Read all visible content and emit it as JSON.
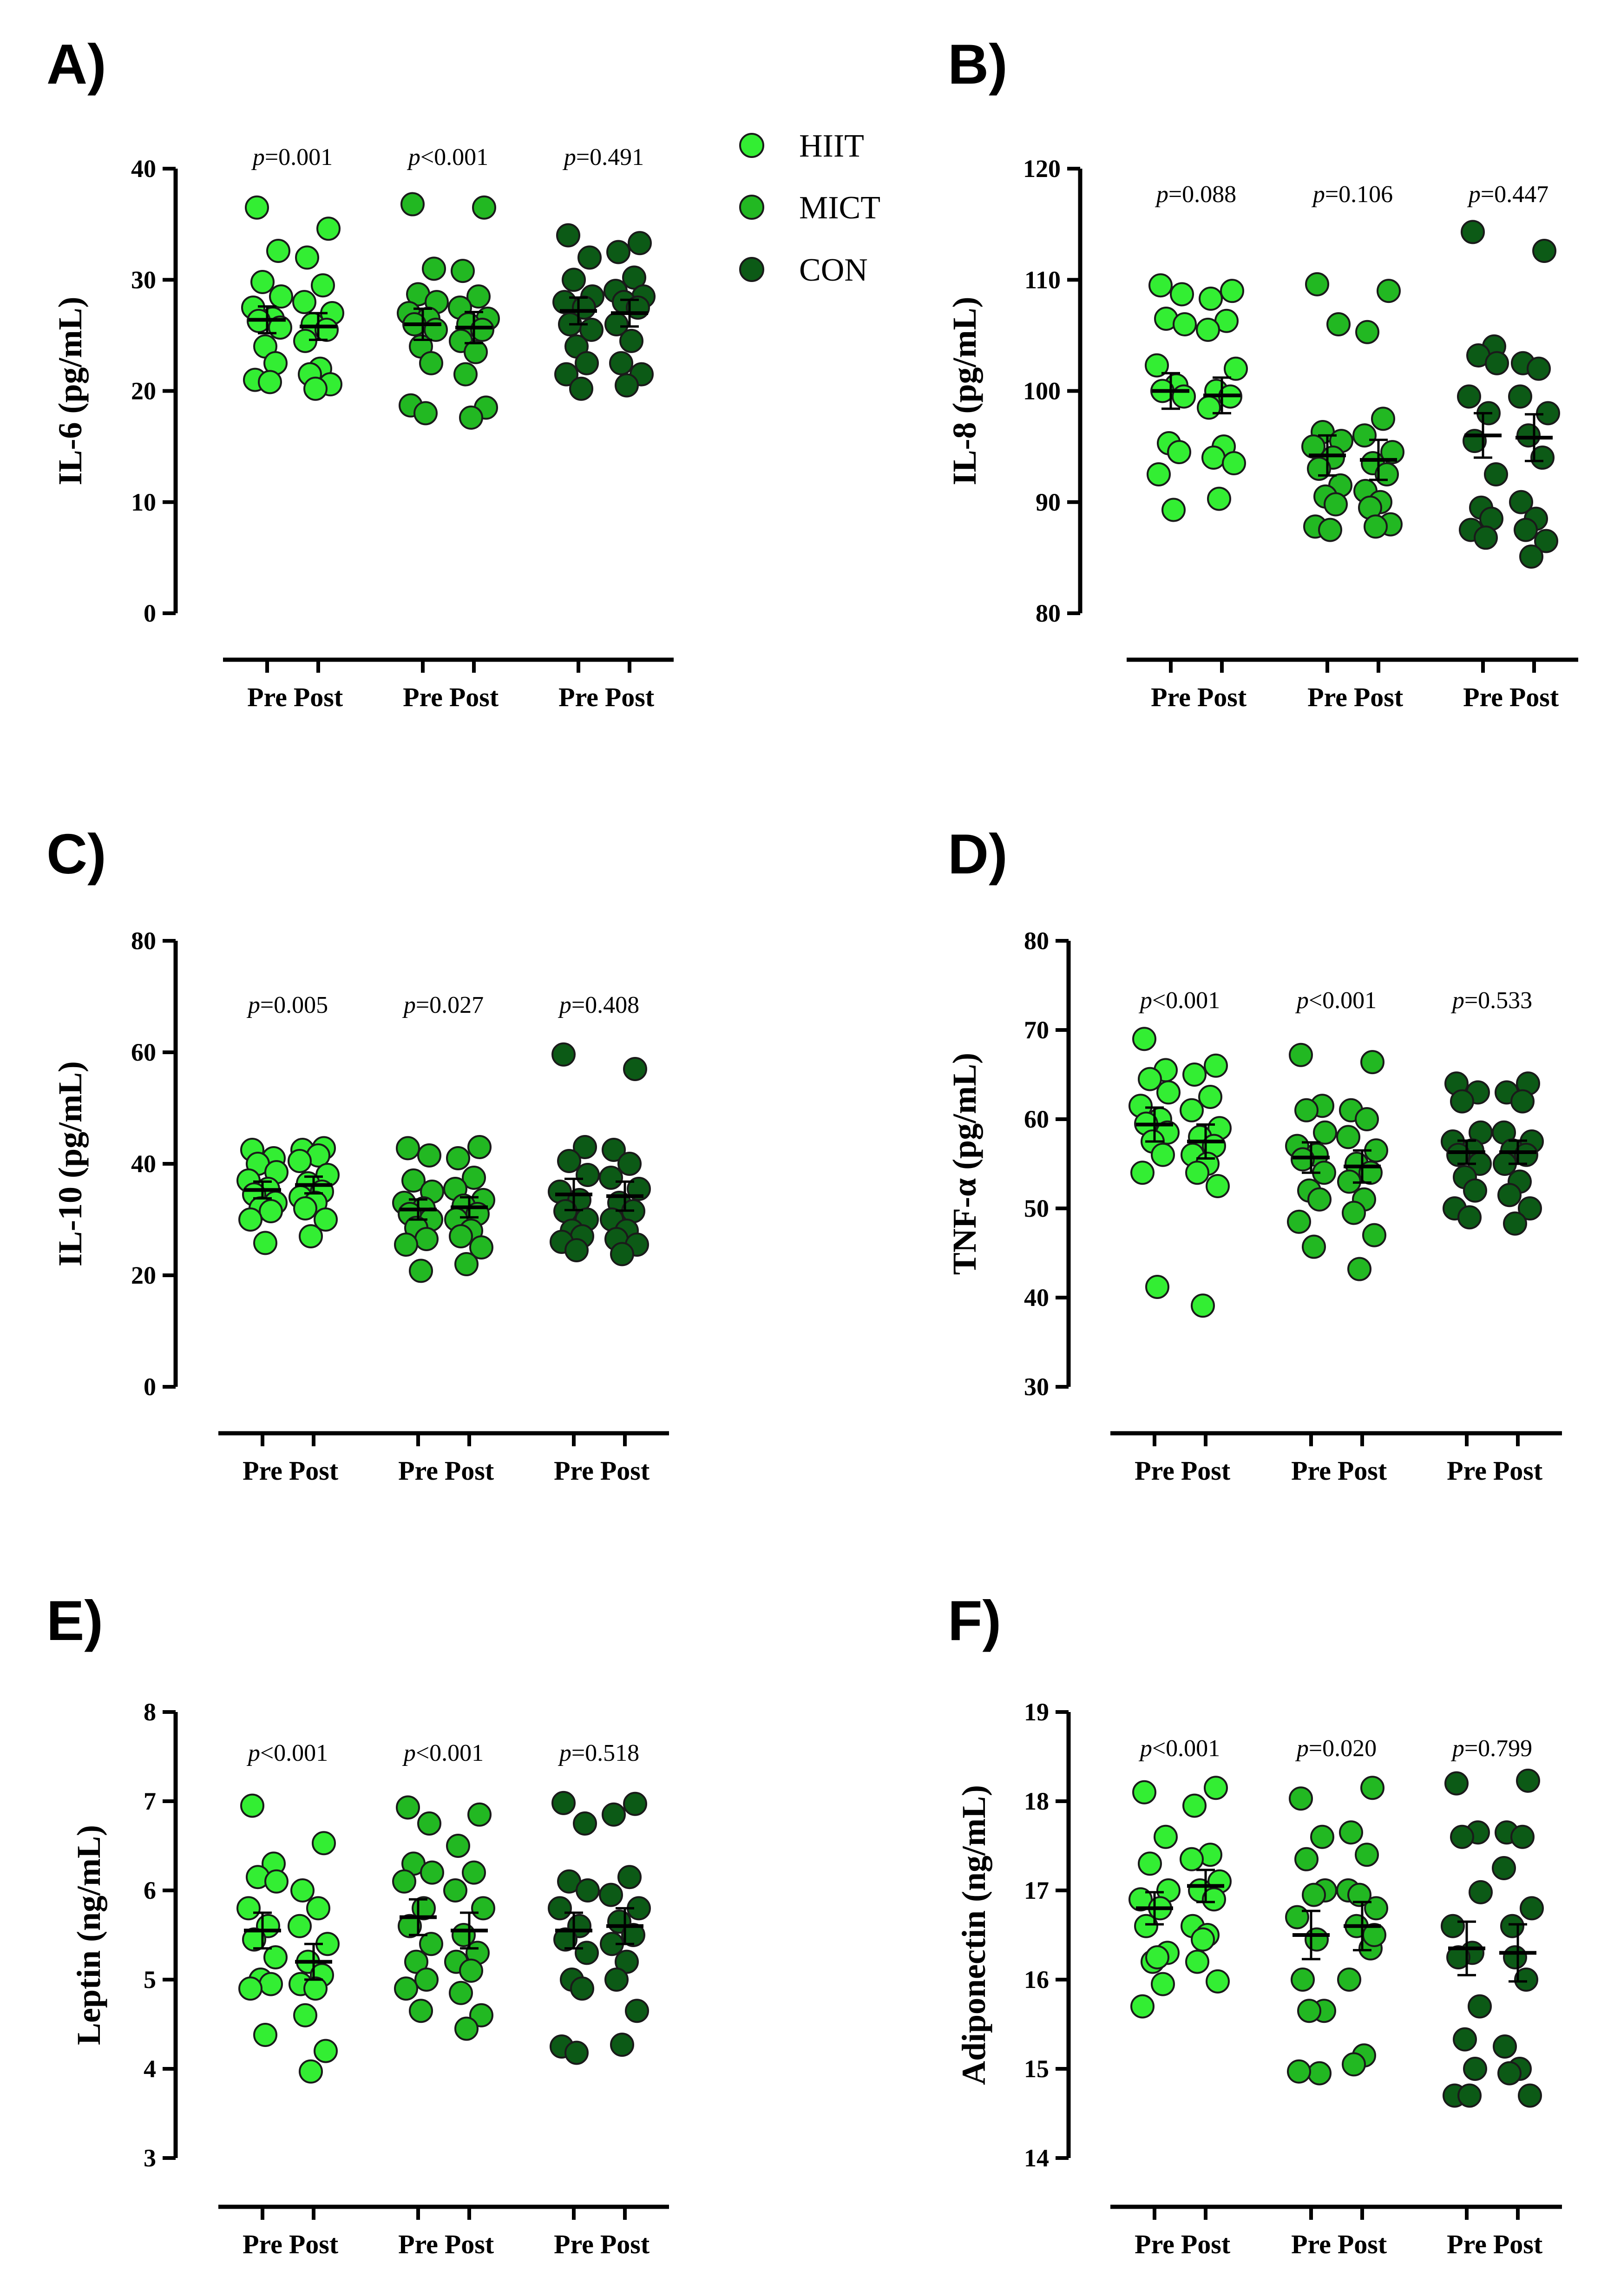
{
  "colors": {
    "HIIT": "#33ee33",
    "MICT": "#22b822",
    "CON": "#0c5a16"
  },
  "legend": [
    {
      "label": "HIIT",
      "color": "#33ee33"
    },
    {
      "label": "MICT",
      "color": "#22b822"
    },
    {
      "label": "CON",
      "color": "#0c5a16"
    }
  ],
  "chart_data": [
    {
      "type": "scatter",
      "panel": "A)",
      "ylabel": "IL-6 (pg/mL)",
      "ylim": [
        0,
        40
      ],
      "yticks": [
        0,
        10,
        20,
        30,
        40
      ],
      "categories": [
        "Pre",
        "Post",
        "Pre",
        "Post",
        "Pre",
        "Post"
      ],
      "pvalues": [
        [
          "p",
          "=0.001"
        ],
        [
          "p",
          "<0.001"
        ],
        [
          "p",
          "=0.491"
        ]
      ],
      "groups": [
        {
          "group": "HIIT",
          "pre": {
            "values": [
              36.5,
              32.6,
              29.8,
              28.5,
              27.5,
              26.5,
              26.3,
              25.7,
              24.0,
              22.5,
              21.0,
              20.8
            ],
            "mean": 26.4,
            "sem": 1.2
          },
          "post": {
            "values": [
              34.6,
              32.0,
              29.5,
              28.0,
              27.0,
              26.0,
              25.5,
              24.5,
              22.0,
              21.5,
              20.6,
              20.2
            ],
            "mean": 25.8,
            "sem": 1.2
          }
        },
        {
          "group": "MICT",
          "pre": {
            "values": [
              36.8,
              31.0,
              28.7,
              28.0,
              27.0,
              26.5,
              26.0,
              25.5,
              24.0,
              22.5,
              18.7,
              18.0
            ],
            "mean": 26.0,
            "sem": 1.4
          },
          "post": {
            "values": [
              36.5,
              30.8,
              28.5,
              27.5,
              26.5,
              26.0,
              25.5,
              24.5,
              23.5,
              21.5,
              18.5,
              17.6
            ],
            "mean": 25.7,
            "sem": 1.4
          }
        },
        {
          "group": "CON",
          "pre": {
            "values": [
              34.0,
              32.0,
              30.0,
              28.5,
              28.0,
              27.5,
              26.0,
              25.5,
              24.0,
              22.5,
              21.5,
              20.2
            ],
            "mean": 27.2,
            "sem": 1.2
          },
          "post": {
            "values": [
              33.3,
              32.5,
              30.2,
              29.0,
              28.5,
              28.0,
              27.5,
              26.0,
              24.5,
              22.5,
              21.5,
              20.5
            ],
            "mean": 27.0,
            "sem": 1.2
          }
        }
      ]
    },
    {
      "type": "scatter",
      "panel": "B)",
      "ylabel": "IL-8 (pg/mL)",
      "ylim": [
        80,
        120
      ],
      "yticks": [
        80,
        90,
        100,
        110,
        120
      ],
      "categories": [
        "Pre",
        "Post",
        "Pre",
        "Post",
        "Pre",
        "Post"
      ],
      "pvalues": [
        [
          "p",
          "=0.088"
        ],
        [
          "p",
          "=0.106"
        ],
        [
          "p",
          "=0.447"
        ]
      ],
      "groups": [
        {
          "group": "HIIT",
          "pre": {
            "values": [
              109.5,
              108.7,
              106.5,
              106.0,
              102.3,
              100.5,
              100.0,
              99.5,
              95.3,
              94.5,
              92.5,
              89.3
            ],
            "mean": 100.0,
            "sem": 1.6
          },
          "post": {
            "values": [
              109.0,
              108.3,
              106.3,
              105.5,
              102.0,
              100.0,
              99.5,
              98.5,
              95.0,
              94.0,
              93.5,
              90.3
            ],
            "mean": 99.6,
            "sem": 1.6
          }
        },
        {
          "group": "MICT",
          "pre": {
            "values": [
              109.6,
              106.0,
              96.3,
              95.5,
              95.0,
              94.0,
              93.0,
              91.5,
              90.5,
              89.8,
              87.8,
              87.5
            ],
            "mean": 94.2,
            "sem": 1.8
          },
          "post": {
            "values": [
              109.0,
              105.3,
              97.5,
              96.0,
              94.5,
              93.5,
              92.5,
              91.0,
              90.0,
              89.5,
              88.0,
              87.8
            ],
            "mean": 93.8,
            "sem": 1.8
          }
        },
        {
          "group": "CON",
          "pre": {
            "values": [
              114.3,
              104.0,
              103.2,
              102.5,
              99.5,
              98.0,
              95.5,
              92.5,
              89.5,
              88.5,
              87.5,
              86.8
            ],
            "mean": 96.0,
            "sem": 2.0
          },
          "post": {
            "values": [
              112.6,
              102.5,
              102.0,
              99.5,
              98.0,
              96.0,
              94.0,
              90.0,
              88.5,
              87.5,
              86.5,
              85.1
            ],
            "mean": 95.8,
            "sem": 2.1
          }
        }
      ]
    },
    {
      "type": "scatter",
      "panel": "C)",
      "ylabel": "IL-10 (pg/mL)",
      "ylim": [
        0,
        80
      ],
      "yticks": [
        0,
        20,
        40,
        60,
        80
      ],
      "categories": [
        "Pre",
        "Post",
        "Pre",
        "Post",
        "Pre",
        "Post"
      ],
      "pvalues": [
        [
          "p",
          "=0.005"
        ],
        [
          "p",
          "=0.027"
        ],
        [
          "p",
          "=0.408"
        ]
      ],
      "groups": [
        {
          "group": "HIIT",
          "pre": {
            "values": [
              42.5,
              41.0,
              40.0,
              38.5,
              37.0,
              35.5,
              34.5,
              33.0,
              32.0,
              31.5,
              30.0,
              25.8
            ],
            "mean": 35.3,
            "sem": 1.5
          },
          "post": {
            "values": [
              42.8,
              42.5,
              41.5,
              40.5,
              38.0,
              36.5,
              35.0,
              34.0,
              33.0,
              32.0,
              30.0,
              27.0
            ],
            "mean": 36.2,
            "sem": 1.5
          }
        },
        {
          "group": "MICT",
          "pre": {
            "values": [
              42.8,
              41.5,
              37.0,
              35.0,
              33.0,
              32.0,
              31.0,
              30.0,
              28.5,
              26.5,
              25.5,
              20.8
            ],
            "mean": 31.8,
            "sem": 1.8
          },
          "post": {
            "values": [
              43.0,
              41.0,
              37.5,
              35.5,
              33.5,
              32.5,
              31.0,
              30.0,
              28.0,
              27.0,
              25.0,
              22.0
            ],
            "mean": 32.2,
            "sem": 1.8
          }
        },
        {
          "group": "CON",
          "pre": {
            "values": [
              59.6,
              43.0,
              40.5,
              38.0,
              35.0,
              33.5,
              31.5,
              30.0,
              28.0,
              27.0,
              26.0,
              24.5
            ],
            "mean": 34.5,
            "sem": 2.8
          },
          "post": {
            "values": [
              57.0,
              42.5,
              40.0,
              37.5,
              35.5,
              33.0,
              31.5,
              30.0,
              28.0,
              26.5,
              25.5,
              23.8
            ],
            "mean": 34.2,
            "sem": 2.6
          }
        }
      ]
    },
    {
      "type": "scatter",
      "panel": "D)",
      "ylabel": "TNF-α (pg/mL)",
      "ylim": [
        30,
        80
      ],
      "yticks": [
        30,
        40,
        50,
        60,
        70,
        80
      ],
      "categories": [
        "Pre",
        "Post",
        "Pre",
        "Post",
        "Pre",
        "Post"
      ],
      "pvalues": [
        [
          "p",
          "<0.001"
        ],
        [
          "p",
          "<0.001"
        ],
        [
          "p",
          "=0.533"
        ]
      ],
      "groups": [
        {
          "group": "HIIT",
          "pre": {
            "values": [
              69.0,
              65.5,
              64.5,
              63.0,
              61.5,
              60.0,
              59.5,
              58.5,
              57.5,
              56.0,
              54.0,
              41.2
            ],
            "mean": 59.4,
            "sem": 1.9
          },
          "post": {
            "values": [
              66.0,
              65.0,
              62.5,
              61.0,
              59.0,
              58.0,
              57.0,
              56.0,
              55.0,
              54.0,
              52.5,
              39.1
            ],
            "mean": 57.5,
            "sem": 1.9
          }
        },
        {
          "group": "MICT",
          "pre": {
            "values": [
              67.2,
              61.5,
              61.0,
              58.5,
              57.0,
              56.0,
              55.5,
              54.0,
              52.0,
              51.0,
              48.5,
              45.7
            ],
            "mean": 55.7,
            "sem": 1.7
          },
          "post": {
            "values": [
              66.4,
              61.0,
              60.0,
              58.0,
              56.5,
              55.0,
              54.0,
              53.0,
              51.0,
              49.5,
              47.0,
              43.2
            ],
            "mean": 54.7,
            "sem": 1.8
          }
        },
        {
          "group": "CON",
          "pre": {
            "values": [
              64.0,
              63.0,
              62.0,
              58.5,
              57.5,
              56.5,
              56.0,
              55.0,
              53.5,
              52.0,
              50.0,
              49.0
            ],
            "mean": 56.3,
            "sem": 1.3
          },
          "post": {
            "values": [
              64.0,
              63.0,
              62.0,
              58.5,
              57.5,
              56.5,
              56.0,
              55.0,
              53.0,
              51.5,
              50.0,
              48.3
            ],
            "mean": 56.3,
            "sem": 1.3
          }
        }
      ]
    },
    {
      "type": "scatter",
      "panel": "E)",
      "ylabel": "Leptin (ng/mL)",
      "ylim": [
        3,
        8
      ],
      "yticks": [
        3,
        4,
        5,
        6,
        7,
        8
      ],
      "categories": [
        "Pre",
        "Post",
        "Pre",
        "Post",
        "Pre",
        "Post"
      ],
      "pvalues": [
        [
          "p",
          "<0.001"
        ],
        [
          "p",
          "<0.001"
        ],
        [
          "p",
          "=0.518"
        ]
      ],
      "groups": [
        {
          "group": "HIIT",
          "pre": {
            "values": [
              6.95,
              6.3,
              6.15,
              6.1,
              5.8,
              5.6,
              5.45,
              5.25,
              5.0,
              4.95,
              4.9,
              4.38
            ],
            "mean": 5.55,
            "sem": 0.2
          },
          "post": {
            "values": [
              6.53,
              6.0,
              5.8,
              5.6,
              5.4,
              5.2,
              5.05,
              4.95,
              4.9,
              4.6,
              4.2,
              3.97
            ],
            "mean": 5.2,
            "sem": 0.2
          }
        },
        {
          "group": "MICT",
          "pre": {
            "values": [
              6.93,
              6.75,
              6.3,
              6.2,
              6.1,
              5.8,
              5.6,
              5.4,
              5.2,
              5.0,
              4.9,
              4.65
            ],
            "mean": 5.7,
            "sem": 0.2
          },
          "post": {
            "values": [
              6.85,
              6.5,
              6.2,
              6.0,
              5.8,
              5.5,
              5.3,
              5.2,
              5.1,
              4.85,
              4.6,
              4.45
            ],
            "mean": 5.55,
            "sem": 0.2
          }
        },
        {
          "group": "CON",
          "pre": {
            "values": [
              6.98,
              6.75,
              6.1,
              6.0,
              5.8,
              5.6,
              5.45,
              5.3,
              5.0,
              4.9,
              4.25,
              4.18
            ],
            "mean": 5.55,
            "sem": 0.2
          },
          "post": {
            "values": [
              6.97,
              6.85,
              6.15,
              5.95,
              5.8,
              5.65,
              5.5,
              5.4,
              5.2,
              5.0,
              4.65,
              4.27
            ],
            "mean": 5.6,
            "sem": 0.2
          }
        }
      ]
    },
    {
      "type": "scatter",
      "panel": "F)",
      "ylabel": "Adiponectin (ng/mL)",
      "ylim": [
        14,
        19
      ],
      "yticks": [
        14,
        15,
        16,
        17,
        18,
        19
      ],
      "categories": [
        "Pre",
        "Post",
        "Pre",
        "Post",
        "Pre",
        "Post"
      ],
      "pvalues": [
        [
          "p",
          "<0.001"
        ],
        [
          "p",
          "=0.020"
        ],
        [
          "p",
          "=0.799"
        ]
      ],
      "groups": [
        {
          "group": "HIIT",
          "pre": {
            "values": [
              18.1,
              17.6,
              17.3,
              17.0,
              16.9,
              16.8,
              16.6,
              16.3,
              16.2,
              15.95,
              15.7,
              16.25
            ],
            "mean": 16.8,
            "sem": 0.18
          },
          "post": {
            "values": [
              18.15,
              17.95,
              17.4,
              17.35,
              17.1,
              17.0,
              16.9,
              16.6,
              16.5,
              16.2,
              15.98,
              16.45
            ],
            "mean": 17.05,
            "sem": 0.18
          }
        },
        {
          "group": "MICT",
          "pre": {
            "values": [
              18.03,
              17.6,
              17.35,
              17.0,
              16.7,
              16.45,
              16.0,
              15.65,
              15.65,
              14.95,
              14.97,
              16.95
            ],
            "mean": 16.5,
            "sem": 0.27
          },
          "post": {
            "values": [
              18.15,
              17.65,
              17.4,
              17.0,
              16.8,
              16.6,
              16.35,
              16.0,
              15.15,
              15.05,
              16.5,
              16.95
            ],
            "mean": 16.6,
            "sem": 0.27
          }
        },
        {
          "group": "CON",
          "pre": {
            "values": [
              18.2,
              17.65,
              17.6,
              16.98,
              16.6,
              16.3,
              16.25,
              15.7,
              15.33,
              15.0,
              14.7,
              14.7
            ],
            "mean": 16.35,
            "sem": 0.3
          },
          "post": {
            "values": [
              18.23,
              17.65,
              17.6,
              17.25,
              16.8,
              16.6,
              16.0,
              15.25,
              15.0,
              14.95,
              14.7,
              16.25
            ],
            "mean": 16.3,
            "sem": 0.32
          }
        }
      ]
    }
  ]
}
